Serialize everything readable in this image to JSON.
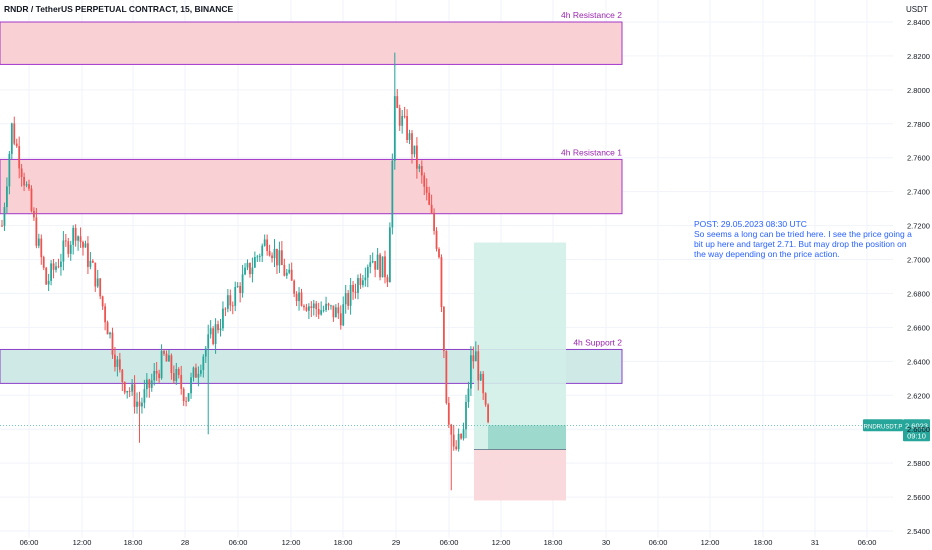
{
  "chart_data": {
    "type": "candlestick",
    "title": "RNDR / TetherUS PERPETUAL CONTRACT, 15, BINANCE",
    "currency_label": "USDT",
    "y_ticks": [
      "2.8400",
      "2.8200",
      "2.8000",
      "2.7800",
      "2.7600",
      "2.7400",
      "2.7200",
      "2.7000",
      "2.6800",
      "2.6600",
      "2.6400",
      "2.6200",
      "2.6000",
      "2.5800",
      "2.5600",
      "2.5400"
    ],
    "x_ticks": [
      "06:00",
      "12:00",
      "18:00",
      "28",
      "06:00",
      "12:00",
      "18:00",
      "29",
      "06:00",
      "12:00",
      "18:00",
      "30",
      "06:00",
      "12:00",
      "18:00",
      "31",
      "06:00"
    ],
    "ylim": [
      2.54,
      2.84
    ],
    "zones": [
      {
        "label": "4h Resistance 2",
        "low": 2.815,
        "high": 2.84
      },
      {
        "label": "4h Resistance 1",
        "low": 2.727,
        "high": 2.759
      },
      {
        "label": "4h Support 2",
        "low": 2.627,
        "high": 2.647
      }
    ],
    "trade": {
      "entry": 2.588,
      "target": 2.71,
      "stop": 2.558
    },
    "price_tag": {
      "symbol": "RNDRUSDT.P",
      "price": "2.6023",
      "countdown": "09:10",
      "value": 2.6023
    },
    "anchors": [
      {
        "t": 0,
        "p": 2.72
      },
      {
        "t": 4,
        "p": 2.778
      },
      {
        "t": 10,
        "p": 2.742
      },
      {
        "t": 18,
        "p": 2.686
      },
      {
        "t": 30,
        "p": 2.718
      },
      {
        "t": 38,
        "p": 2.69
      },
      {
        "t": 48,
        "p": 2.632
      },
      {
        "t": 56,
        "p": 2.614
      },
      {
        "t": 66,
        "p": 2.642
      },
      {
        "t": 75,
        "p": 2.62
      },
      {
        "t": 82,
        "p": 2.645
      },
      {
        "t": 94,
        "p": 2.678
      },
      {
        "t": 108,
        "p": 2.712
      },
      {
        "t": 118,
        "p": 2.685
      },
      {
        "t": 126,
        "p": 2.672
      },
      {
        "t": 138,
        "p": 2.668
      },
      {
        "t": 150,
        "p": 2.702
      },
      {
        "t": 157,
        "p": 2.692
      },
      {
        "t": 160,
        "p": 2.79
      },
      {
        "t": 165,
        "p": 2.775
      },
      {
        "t": 172,
        "p": 2.742
      },
      {
        "t": 178,
        "p": 2.705
      },
      {
        "t": 181,
        "p": 2.62
      },
      {
        "t": 184,
        "p": 2.585
      },
      {
        "t": 188,
        "p": 2.598
      },
      {
        "t": 191,
        "p": 2.64
      },
      {
        "t": 193,
        "p": 2.643
      },
      {
        "t": 198,
        "p": 2.6
      }
    ],
    "extremes": [
      {
        "t": 160,
        "high": 2.822
      },
      {
        "t": 183,
        "low": 2.564
      },
      {
        "t": 56,
        "low": 2.592
      },
      {
        "t": 84,
        "low": 2.597
      }
    ]
  },
  "annotations": {
    "note": [
      "POST: 29.05.2023 08:30 UTC",
      "So seems a long can be tried here. I see the price going a",
      "bit up here and target 2.71. But may drop the position on",
      "the way depending on the price action."
    ]
  },
  "colors": {
    "up": "#26a69a",
    "down": "#ef5350",
    "resistance_fill": "#f9d1d5",
    "resistance_border": "#a235c9",
    "support_fill": "#cfe9e6",
    "support_border": "#8b3fc8",
    "target_fill": "#d2eee8",
    "stop_fill": "#f9d5d8",
    "label": "#9c27b0",
    "note": "#2962ff",
    "grid": "#f0f3fa",
    "axis_text": "#131722",
    "price_tag": "#26a69a"
  }
}
